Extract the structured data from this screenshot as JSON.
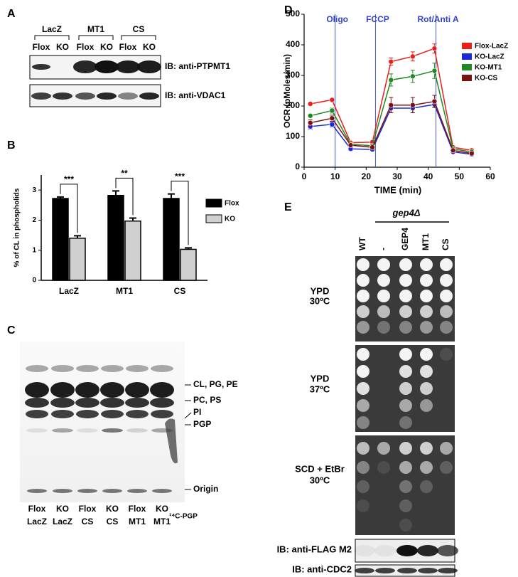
{
  "panel_letters": [
    "A",
    "B",
    "C",
    "D",
    "E"
  ],
  "panel_a": {
    "groups": [
      "LacZ",
      "MT1",
      "CS"
    ],
    "lanes": [
      "Flox",
      "KO",
      "Flox",
      "KO",
      "Flox",
      "KO"
    ],
    "blots": [
      "IB: anti-PTPMT1",
      "IB: anti-VDAC1"
    ]
  },
  "chart_data": [
    {
      "type": "bar",
      "y_label": "% of CL in phospholids",
      "categories": [
        "LacZ",
        "MT1",
        "CS"
      ],
      "series": [
        {
          "name": "Flox",
          "color": "#000000",
          "values": [
            2.72,
            2.82,
            2.72
          ],
          "errors": [
            0.05,
            0.15,
            0.15
          ]
        },
        {
          "name": "KO",
          "color": "#d0d0d0",
          "values": [
            1.4,
            1.97,
            1.03
          ],
          "errors": [
            0.08,
            0.1,
            0.05
          ]
        }
      ],
      "significance": [
        "***",
        "**",
        "***"
      ],
      "ylim": [
        0,
        3.5
      ],
      "yticks": [
        0,
        1,
        2,
        3
      ],
      "legend": "right"
    },
    {
      "type": "line",
      "x_label": "TIME (min)",
      "y_label": "OCR (pMoles/min)",
      "x": [
        2,
        9,
        15,
        22,
        28,
        35,
        42,
        48,
        54
      ],
      "series": [
        {
          "name": "Flox-LacZ",
          "color": "#e8201c",
          "values": [
            207,
            220,
            80,
            82,
            345,
            362,
            388,
            65,
            55
          ],
          "errors": [
            5,
            5,
            5,
            5,
            12,
            15,
            15,
            5,
            5
          ]
        },
        {
          "name": "KO-LacZ",
          "color": "#1a28d8",
          "values": [
            133,
            140,
            60,
            58,
            193,
            193,
            205,
            50,
            42
          ],
          "errors": [
            8,
            8,
            5,
            5,
            15,
            15,
            10,
            5,
            5
          ]
        },
        {
          "name": "KO-MT1",
          "color": "#1f8a1f",
          "values": [
            168,
            185,
            75,
            70,
            285,
            297,
            315,
            60,
            50
          ],
          "errors": [
            5,
            8,
            5,
            5,
            20,
            20,
            25,
            5,
            5
          ]
        },
        {
          "name": "KO-CS",
          "color": "#7a1010",
          "values": [
            145,
            160,
            72,
            65,
            203,
            203,
            215,
            55,
            45
          ],
          "errors": [
            10,
            10,
            5,
            5,
            25,
            25,
            20,
            5,
            5
          ]
        }
      ],
      "annotations": [
        {
          "label": "Oligo",
          "x": 10
        },
        {
          "label": "FCCP",
          "x": 23
        },
        {
          "label": "Rot/Anti A",
          "x": 42.5
        }
      ],
      "xlim": [
        0,
        60
      ],
      "xticks": [
        0,
        10,
        20,
        30,
        40,
        50,
        60
      ],
      "ylim": [
        0,
        500
      ],
      "yticks": [
        0,
        100,
        200,
        300,
        400,
        500
      ],
      "legend": "upper right"
    }
  ],
  "panel_c": {
    "band_labels": [
      "CL, PG, PE",
      "PC, PS",
      "PI",
      "PGP",
      "Origin"
    ],
    "lanes_top": [
      "Flox",
      "KO",
      "Flox",
      "KO",
      "Flox",
      "KO"
    ],
    "lanes_bottom": [
      "LacZ",
      "LacZ",
      "CS",
      "CS",
      "MT1",
      "MT1"
    ],
    "standard": "¹⁴C-PGP"
  },
  "panel_e": {
    "genotype": "gep4Δ",
    "strains": [
      "WT",
      "-",
      "GEP4",
      "MT1",
      "CS"
    ],
    "conditions": [
      [
        "YPD",
        "30ºC"
      ],
      [
        "YPD",
        "37ºC"
      ],
      [
        "SCD + EtBr",
        "30ºC"
      ]
    ],
    "blots": [
      "IB: anti-FLAG M2",
      "IB: anti-CDC2"
    ]
  }
}
